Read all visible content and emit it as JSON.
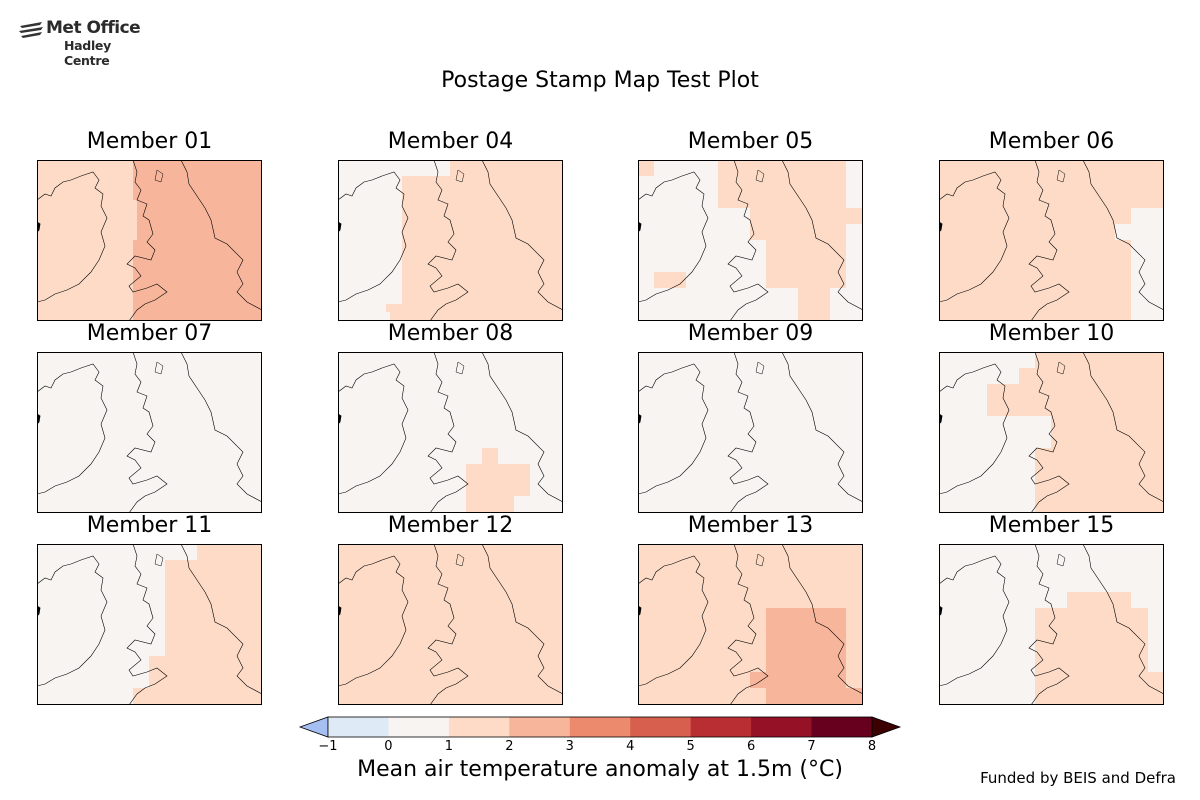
{
  "header": {
    "logo_line1": "Met Office",
    "logo_line2": "Hadley Centre",
    "title": "Postage Stamp Map Test Plot"
  },
  "panels": [
    {
      "title": "Member 01",
      "base": 3
    },
    {
      "title": "Member 04",
      "base": 2
    },
    {
      "title": "Member 05",
      "base": 1
    },
    {
      "title": "Member 06",
      "base": 2
    },
    {
      "title": "Member 07",
      "base": 1
    },
    {
      "title": "Member 08",
      "base": 1
    },
    {
      "title": "Member 09",
      "base": 1
    },
    {
      "title": "Member 10",
      "base": 1
    },
    {
      "title": "Member 11",
      "base": 1
    },
    {
      "title": "Member 12",
      "base": 2
    },
    {
      "title": "Member 13",
      "base": 2
    },
    {
      "title": "Member 15",
      "base": 1
    }
  ],
  "colorbar": {
    "label": "Mean air temperature anomaly at 1.5m (°C)",
    "ticks": [
      "−1",
      "0",
      "1",
      "2",
      "3",
      "4",
      "5",
      "6",
      "7",
      "8"
    ],
    "bins": [
      "#deebf7",
      "#f7f4f2",
      "#fddbc7",
      "#f7b69b",
      "#ec8a6e",
      "#d6604d",
      "#b92e33",
      "#941126",
      "#67001f"
    ],
    "under_color": "#a5bff2",
    "over_color": "#3d0000"
  },
  "footer": {
    "funding": "Funded by BEIS and Defra"
  }
}
